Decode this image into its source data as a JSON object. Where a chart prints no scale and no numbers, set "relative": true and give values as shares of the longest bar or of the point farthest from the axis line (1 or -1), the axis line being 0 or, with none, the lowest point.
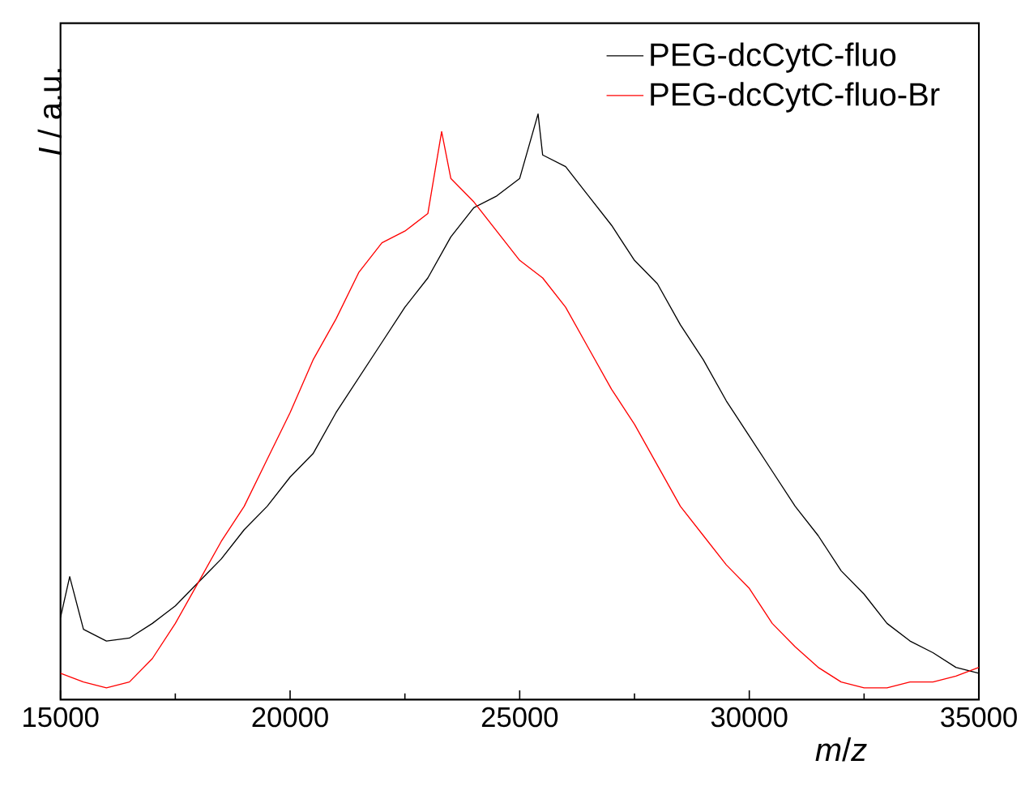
{
  "chart_data": {
    "type": "line",
    "relative": true,
    "xlabel": "*m*/*z*",
    "ylabel": "*I* / a.u.",
    "xlim": [
      15000,
      35000
    ],
    "xticks": [
      15000,
      20000,
      25000,
      30000,
      35000
    ],
    "legend": "top right",
    "grid": false,
    "marker": "none",
    "line_style": "solid",
    "series": [
      {
        "name": "PEG-dcCytC-fluo",
        "color": "#000000",
        "x": [
          15000,
          15200,
          15500,
          16000,
          16500,
          17000,
          17500,
          18000,
          18500,
          19000,
          19500,
          20000,
          20500,
          21000,
          21500,
          22000,
          22500,
          23000,
          23500,
          24000,
          24500,
          25000,
          25400,
          25500,
          26000,
          26500,
          27000,
          27500,
          28000,
          28500,
          29000,
          29500,
          30000,
          30500,
          31000,
          31500,
          32000,
          32500,
          33000,
          33500,
          34000,
          34500,
          35000
        ],
        "values": [
          0.14,
          0.21,
          0.12,
          0.1,
          0.105,
          0.13,
          0.16,
          0.2,
          0.24,
          0.29,
          0.33,
          0.38,
          0.42,
          0.49,
          0.55,
          0.61,
          0.67,
          0.72,
          0.79,
          0.84,
          0.86,
          0.89,
          1.0,
          0.93,
          0.91,
          0.86,
          0.81,
          0.75,
          0.71,
          0.64,
          0.58,
          0.51,
          0.45,
          0.39,
          0.33,
          0.28,
          0.22,
          0.18,
          0.13,
          0.1,
          0.08,
          0.055,
          0.045
        ]
      },
      {
        "name": "PEG-dcCytC-fluo-Br",
        "color": "#ff0000",
        "x": [
          15000,
          15500,
          16000,
          16500,
          17000,
          17500,
          18000,
          18500,
          19000,
          19500,
          20000,
          20500,
          21000,
          21500,
          22000,
          22500,
          23000,
          23300,
          23500,
          24000,
          24500,
          25000,
          25500,
          26000,
          26500,
          27000,
          27500,
          28000,
          28500,
          29000,
          29500,
          30000,
          30500,
          31000,
          31500,
          32000,
          32500,
          33000,
          33500,
          34000,
          34500,
          35000
        ],
        "values": [
          0.045,
          0.03,
          0.02,
          0.03,
          0.07,
          0.13,
          0.2,
          0.27,
          0.33,
          0.41,
          0.49,
          0.58,
          0.65,
          0.73,
          0.78,
          0.8,
          0.83,
          0.97,
          0.89,
          0.85,
          0.8,
          0.75,
          0.72,
          0.67,
          0.6,
          0.53,
          0.47,
          0.4,
          0.33,
          0.28,
          0.23,
          0.19,
          0.13,
          0.09,
          0.055,
          0.03,
          0.02,
          0.02,
          0.03,
          0.03,
          0.04,
          0.055
        ]
      }
    ]
  }
}
